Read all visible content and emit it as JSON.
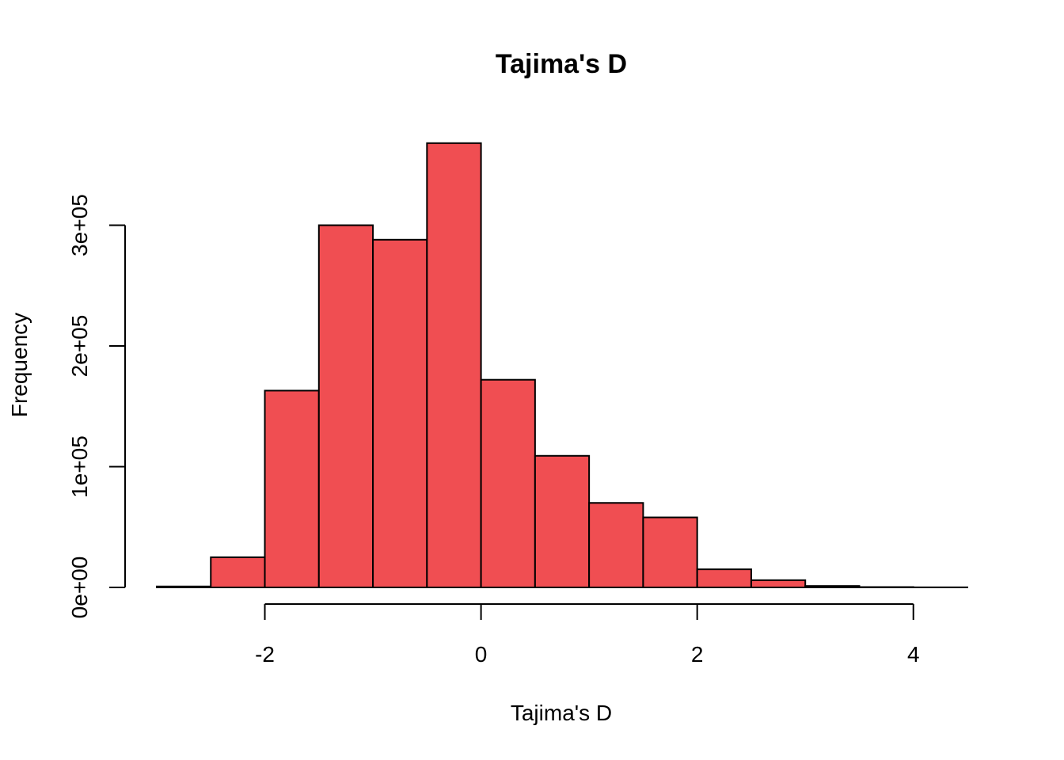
{
  "chart_data": {
    "type": "bar",
    "title": "Tajima's D",
    "xlabel": "Tajima's D",
    "ylabel": "Frequency",
    "bar_color": "#F04E52",
    "bins": [
      {
        "x0": -3.0,
        "x1": -2.5,
        "count": 800
      },
      {
        "x0": -2.5,
        "x1": -2.0,
        "count": 25000
      },
      {
        "x0": -2.0,
        "x1": -1.5,
        "count": 163000
      },
      {
        "x0": -1.5,
        "x1": -1.0,
        "count": 300000
      },
      {
        "x0": -1.0,
        "x1": -0.5,
        "count": 288000
      },
      {
        "x0": -0.5,
        "x1": 0.0,
        "count": 368000
      },
      {
        "x0": 0.0,
        "x1": 0.5,
        "count": 172000
      },
      {
        "x0": 0.5,
        "x1": 1.0,
        "count": 109000
      },
      {
        "x0": 1.0,
        "x1": 1.5,
        "count": 70000
      },
      {
        "x0": 1.5,
        "x1": 2.0,
        "count": 58000
      },
      {
        "x0": 2.0,
        "x1": 2.5,
        "count": 15000
      },
      {
        "x0": 2.5,
        "x1": 3.0,
        "count": 6000
      },
      {
        "x0": 3.0,
        "x1": 3.5,
        "count": 1200
      },
      {
        "x0": 3.5,
        "x1": 4.0,
        "count": 300
      },
      {
        "x0": 4.0,
        "x1": 4.5,
        "count": 100
      }
    ],
    "xlim": [
      -3.0,
      4.5
    ],
    "ylim": [
      0,
      370000
    ],
    "x_ticks": [
      {
        "value": -2,
        "label": "-2"
      },
      {
        "value": 0,
        "label": "0"
      },
      {
        "value": 2,
        "label": "2"
      },
      {
        "value": 4,
        "label": "4"
      }
    ],
    "y_ticks": [
      {
        "value": 0,
        "label": "0e+00"
      },
      {
        "value": 100000,
        "label": "1e+05"
      },
      {
        "value": 200000,
        "label": "2e+05"
      },
      {
        "value": 300000,
        "label": "3e+05"
      }
    ],
    "grid": false,
    "legend": "none"
  }
}
